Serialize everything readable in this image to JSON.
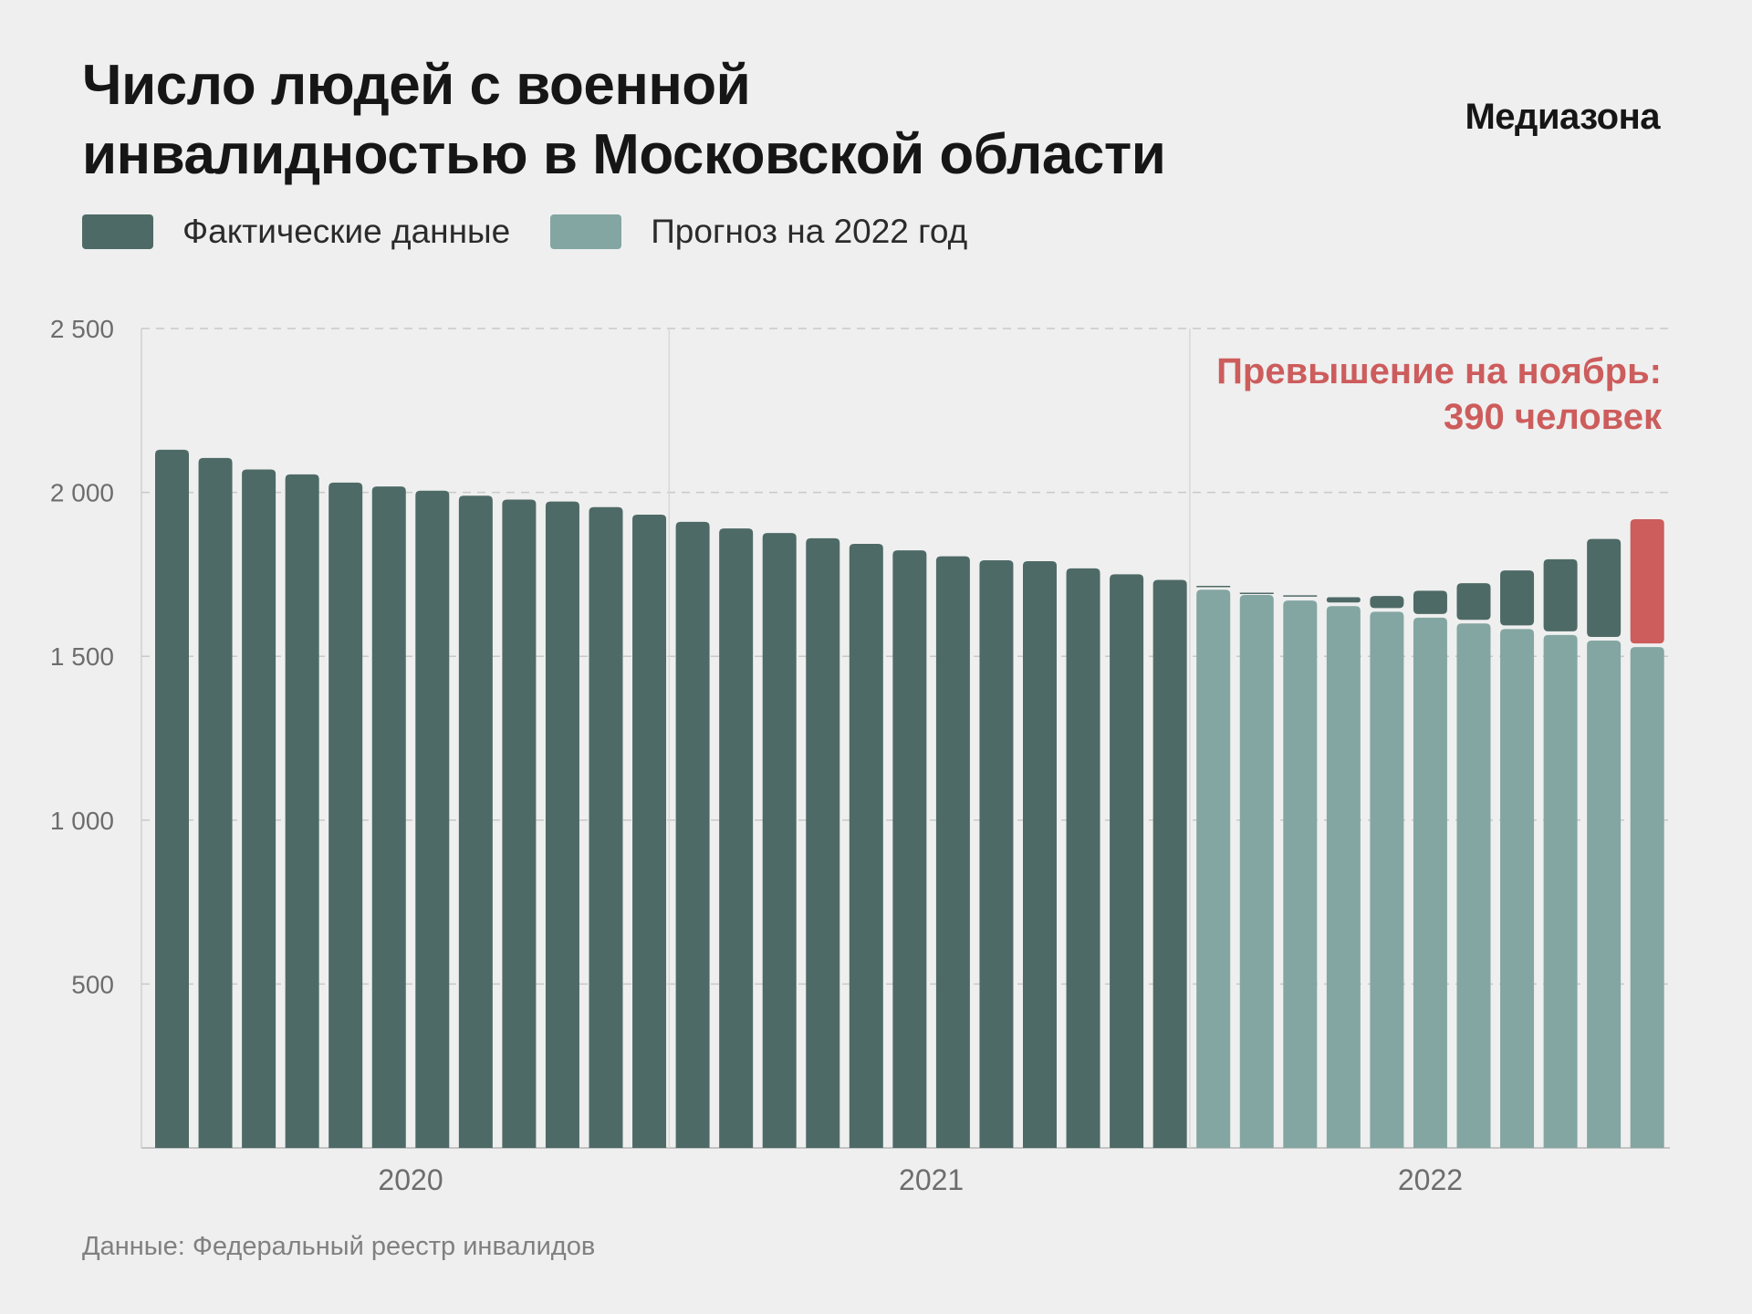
{
  "header": {
    "title_line1": "Число людей с военной",
    "title_line2": "инвалидностью в Московской области",
    "brand": "Медиазона"
  },
  "legend": {
    "actual_label": "Фактические данные",
    "forecast_label": "Прогноз на 2022 год"
  },
  "colors": {
    "actual": "#4e6a66",
    "forecast": "#83a6a2",
    "excess": "#cd5c5c",
    "annotation": "#cd5c5c",
    "grid": "#c9c9c9",
    "axis_text": "#6d6d6d"
  },
  "chart_data": {
    "type": "bar",
    "title": "Число людей с военной инвалидностью в Московской области",
    "xlabel": "",
    "ylabel": "",
    "ylim": [
      0,
      2500
    ],
    "yticks": [
      {
        "value": 500,
        "label": "500"
      },
      {
        "value": 1000,
        "label": "1 000"
      },
      {
        "value": 1500,
        "label": "1 500"
      },
      {
        "value": 2000,
        "label": "2 000"
      },
      {
        "value": 2500,
        "label": "2 500"
      }
    ],
    "x_groups": [
      {
        "label": "2020",
        "start_index": 0,
        "count": 12
      },
      {
        "label": "2021",
        "start_index": 12,
        "count": 12
      },
      {
        "label": "2022",
        "start_index": 24,
        "count": 11
      }
    ],
    "actual": [
      2130,
      2105,
      2070,
      2055,
      2030,
      2018,
      2005,
      1990,
      1978,
      1972,
      1955,
      1932,
      1910,
      1890,
      1876,
      1860,
      1843,
      1823,
      1805,
      1793,
      1790,
      1768,
      1750,
      1733,
      1713,
      1692,
      1684,
      1680,
      1684,
      1700,
      1723,
      1762,
      1796,
      1858,
      1918
    ],
    "forecast": [
      null,
      null,
      null,
      null,
      null,
      null,
      null,
      null,
      null,
      null,
      null,
      null,
      null,
      null,
      null,
      null,
      null,
      null,
      null,
      null,
      null,
      null,
      null,
      null,
      1703,
      1687,
      1670,
      1653,
      1636,
      1618,
      1600,
      1583,
      1565,
      1548,
      1528
    ],
    "excess_index": 34,
    "annotation": {
      "line1": "Превышение на ноябрь:",
      "line2": "390 человек"
    }
  },
  "source": "Данные: Федеральный реестр инвалидов"
}
